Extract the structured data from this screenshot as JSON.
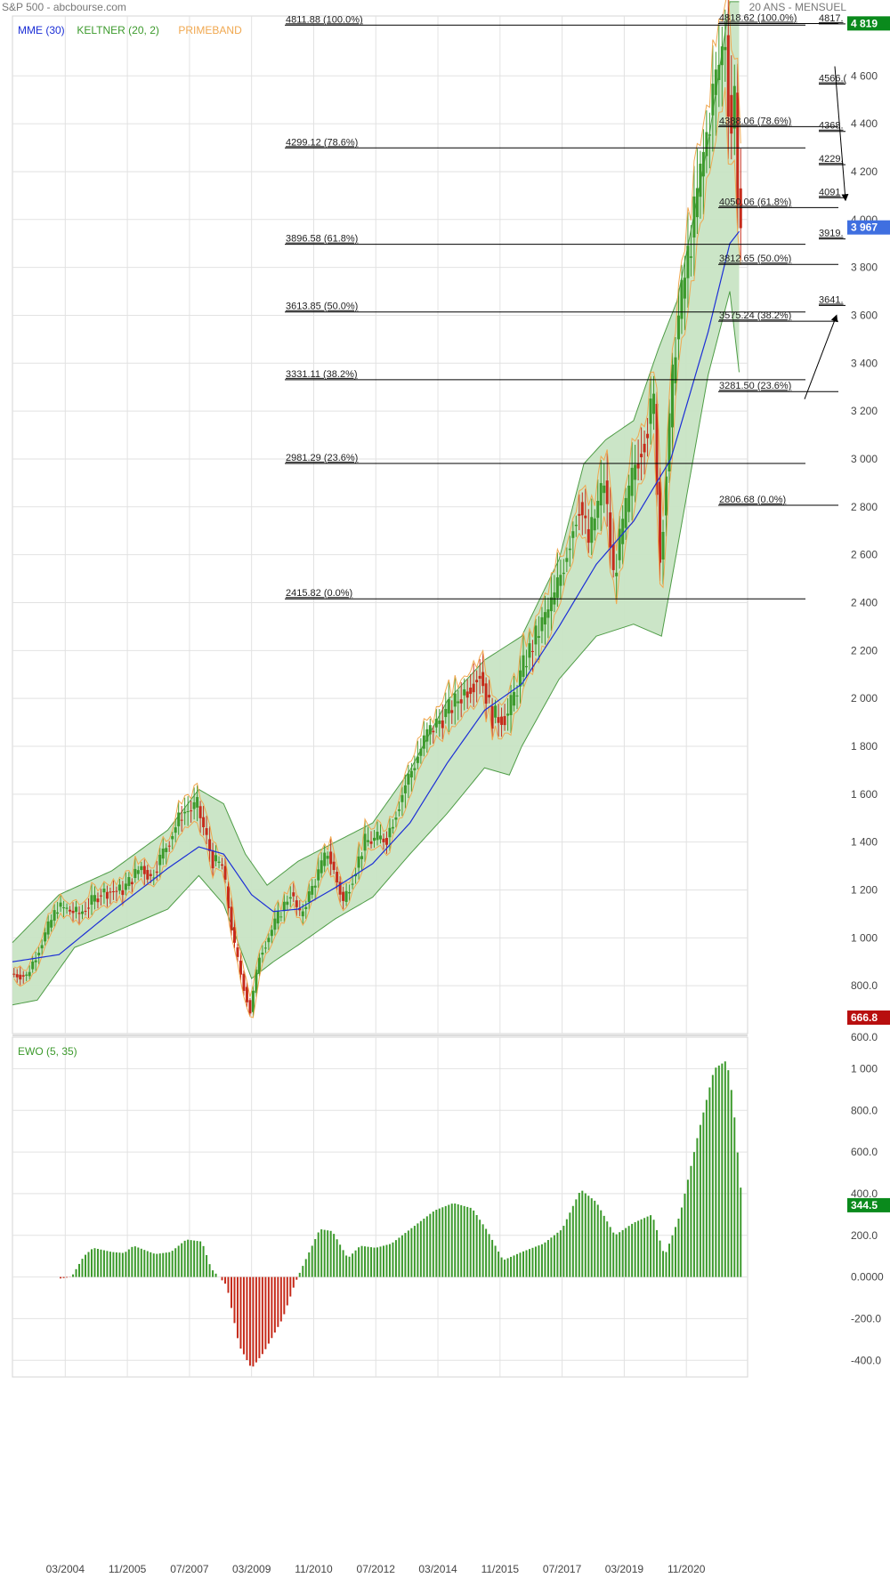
{
  "header": {
    "title": "S&P 500 - abcbourse.com",
    "period": "20 ANS - MENSUEL"
  },
  "colors": {
    "up": "#3c9a2c",
    "down": "#c62b1b",
    "ema": "#1c2fd6",
    "keltner_fill": "#c8e4c4",
    "keltner_line": "#4e9c46",
    "primeband": "#f0a850",
    "fib": "#000000",
    "tag_green": "#0a8a1c",
    "tag_blue": "#3f6fe0",
    "tag_red": "#b80f0f"
  },
  "chart_data": [
    {
      "type": "candlestick",
      "title": "S&P 500",
      "legend": [
        {
          "name": "MME (30)",
          "color": "#1c2fd6"
        },
        {
          "name": "KELTNER (20, 2)",
          "color": "#3c9a2c"
        },
        {
          "name": "PRIMEBAND",
          "color": "#f0a850"
        }
      ],
      "x_tick_labels": [
        "03/2004",
        "11/2005",
        "07/2007",
        "03/2009",
        "11/2010",
        "07/2012",
        "03/2014",
        "11/2015",
        "07/2017",
        "03/2019",
        "11/2020"
      ],
      "y_ticks": [
        800,
        1000,
        1200,
        1400,
        1600,
        1800,
        2000,
        2200,
        2400,
        2600,
        2800,
        3000,
        3200,
        3400,
        3600,
        3800,
        4000,
        4200,
        4400,
        4600
      ],
      "y_tick_labels": [
        "800.0",
        "1 000",
        "1 200",
        "1 400",
        "1 600",
        "1 800",
        "2 000",
        "2 200",
        "2 400",
        "2 600",
        "2 800",
        "3 000",
        "3 200",
        "3 400",
        "3 600",
        "3 800",
        "4 000",
        "4 200",
        "4 400",
        "4 600"
      ],
      "ylim": [
        600,
        4850
      ],
      "bottom_label": "600.0",
      "price_path": [
        [
          "2002-10",
          850
        ],
        [
          "2003-03",
          840
        ],
        [
          "2004-01",
          1130
        ],
        [
          "2004-08",
          1100
        ],
        [
          "2005-03",
          1190
        ],
        [
          "2005-10",
          1200
        ],
        [
          "2006-04",
          1300
        ],
        [
          "2006-07",
          1250
        ],
        [
          "2007-05",
          1520
        ],
        [
          "2007-10",
          1550
        ],
        [
          "2008-03",
          1320
        ],
        [
          "2008-06",
          1300
        ],
        [
          "2008-10",
          960
        ],
        [
          "2009-02",
          740
        ],
        [
          "2009-03",
          690
        ],
        [
          "2009-06",
          930
        ],
        [
          "2010-04",
          1190
        ],
        [
          "2010-07",
          1090
        ],
        [
          "2011-04",
          1360
        ],
        [
          "2011-09",
          1150
        ],
        [
          "2012-04",
          1400
        ],
        [
          "2012-11",
          1420
        ],
        [
          "2013-05",
          1640
        ],
        [
          "2013-12",
          1850
        ],
        [
          "2014-09",
          1980
        ],
        [
          "2015-05",
          2110
        ],
        [
          "2015-09",
          1920
        ],
        [
          "2016-02",
          1930
        ],
        [
          "2016-08",
          2170
        ],
        [
          "2017-05",
          2420
        ],
        [
          "2018-01",
          2820
        ],
        [
          "2018-04",
          2650
        ],
        [
          "2018-09",
          2910
        ],
        [
          "2018-12",
          2510
        ],
        [
          "2019-07",
          2980
        ],
        [
          "2020-01",
          3230
        ],
        [
          "2020-03",
          2580
        ],
        [
          "2020-08",
          3500
        ],
        [
          "2021-04",
          4180
        ],
        [
          "2021-08",
          4520
        ],
        [
          "2021-12",
          4770
        ],
        [
          "2022-01",
          4520
        ],
        [
          "2022-02",
          4380
        ],
        [
          "2022-03",
          4530
        ],
        [
          "2022-04",
          4130
        ],
        [
          "2022-05",
          3970
        ]
      ],
      "ema30_path": [
        [
          "2002-10",
          900
        ],
        [
          "2004-01",
          930
        ],
        [
          "2005-06",
          1110
        ],
        [
          "2006-12",
          1290
        ],
        [
          "2007-10",
          1380
        ],
        [
          "2008-06",
          1350
        ],
        [
          "2009-03",
          1180
        ],
        [
          "2009-10",
          1110
        ],
        [
          "2010-06",
          1120
        ],
        [
          "2011-06",
          1210
        ],
        [
          "2012-06",
          1310
        ],
        [
          "2013-06",
          1480
        ],
        [
          "2014-06",
          1730
        ],
        [
          "2015-06",
          1950
        ],
        [
          "2016-06",
          2060
        ],
        [
          "2017-06",
          2300
        ],
        [
          "2018-06",
          2560
        ],
        [
          "2019-06",
          2740
        ],
        [
          "2020-06",
          3000
        ],
        [
          "2021-06",
          3530
        ],
        [
          "2022-01",
          3900
        ],
        [
          "2022-05",
          3967
        ]
      ],
      "keltner_upper": [
        [
          "2002-10",
          980
        ],
        [
          "2004-01",
          1180
        ],
        [
          "2005-06",
          1280
        ],
        [
          "2006-12",
          1450
        ],
        [
          "2007-10",
          1620
        ],
        [
          "2008-06",
          1560
        ],
        [
          "2009-01",
          1350
        ],
        [
          "2009-08",
          1220
        ],
        [
          "2010-06",
          1320
        ],
        [
          "2011-06",
          1400
        ],
        [
          "2012-06",
          1480
        ],
        [
          "2013-06",
          1700
        ],
        [
          "2014-06",
          1990
        ],
        [
          "2015-06",
          2160
        ],
        [
          "2016-06",
          2260
        ],
        [
          "2017-06",
          2580
        ],
        [
          "2018-02",
          2980
        ],
        [
          "2018-09",
          3080
        ],
        [
          "2019-06",
          3160
        ],
        [
          "2020-02",
          3460
        ],
        [
          "2020-08",
          3660
        ],
        [
          "2021-06",
          4320
        ],
        [
          "2022-01",
          4910
        ]
      ],
      "keltner_lower": [
        [
          "2002-10",
          720
        ],
        [
          "2003-06",
          740
        ],
        [
          "2004-06",
          960
        ],
        [
          "2005-06",
          1020
        ],
        [
          "2006-12",
          1120
        ],
        [
          "2007-10",
          1260
        ],
        [
          "2008-06",
          1140
        ],
        [
          "2009-03",
          830
        ],
        [
          "2009-10",
          900
        ],
        [
          "2010-06",
          970
        ],
        [
          "2011-06",
          1080
        ],
        [
          "2012-06",
          1170
        ],
        [
          "2013-06",
          1350
        ],
        [
          "2014-06",
          1520
        ],
        [
          "2015-06",
          1710
        ],
        [
          "2016-02",
          1680
        ],
        [
          "2016-06",
          1800
        ],
        [
          "2017-06",
          2080
        ],
        [
          "2018-06",
          2260
        ],
        [
          "2019-06",
          2310
        ],
        [
          "2020-03",
          2260
        ],
        [
          "2020-08",
          2620
        ],
        [
          "2021-06",
          3350
        ],
        [
          "2022-01",
          3700
        ],
        [
          "2022-05",
          3250
        ]
      ],
      "fibonacci_long": [
        {
          "label": "4811.88  (100.0%)",
          "value": 4811.88
        },
        {
          "label": "4299.12  (78.6%)",
          "value": 4299.12
        },
        {
          "label": "3896.58  (61.8%)",
          "value": 3896.58
        },
        {
          "label": "3613.85  (50.0%)",
          "value": 3613.85
        },
        {
          "label": "3331.11  (38.2%)",
          "value": 3331.11
        },
        {
          "label": "2981.29  (23.6%)",
          "value": 2981.29
        },
        {
          "label": "2415.82  (0.0%)",
          "value": 2415.82
        }
      ],
      "fibonacci_mid": [
        {
          "label": "4818.62  (100.0%)",
          "value": 4818.62
        },
        {
          "label": "4388.06  (78.6%)",
          "value": 4388.06
        },
        {
          "label": "4050.06  (61.8%)",
          "value": 4050.06
        },
        {
          "label": "3812.65  (50.0%)",
          "value": 3812.65
        },
        {
          "label": "3575.24  (38.2%)",
          "value": 3575.24
        },
        {
          "label": "3281.50  (23.6%)",
          "value": 3281.5
        },
        {
          "label": "2806.68  (0.0%)",
          "value": 2806.68
        }
      ],
      "fibonacci_short": [
        {
          "label": "4817.",
          "value": 4817
        },
        {
          "label": "4566.(",
          "value": 4566
        },
        {
          "label": "4368.",
          "value": 4368
        },
        {
          "label": "4229.",
          "value": 4229
        },
        {
          "label": "4091",
          "value": 4091
        },
        {
          "label": "3919.",
          "value": 3919
        },
        {
          "label": "3641.",
          "value": 3641
        }
      ],
      "price_tags": [
        {
          "label": "4 819",
          "value": 4819,
          "color": "#0a8a1c"
        },
        {
          "label": "3 967",
          "value": 3967,
          "color": "#3f6fe0"
        },
        {
          "label": "666.8",
          "value": 666.8,
          "color": "#b80f0f"
        }
      ],
      "grid": true
    },
    {
      "type": "bar",
      "title": "EWO (5, 35)",
      "y_ticks": [
        -400,
        -200,
        0,
        200,
        400,
        600,
        800,
        1000
      ],
      "y_tick_labels": [
        "-400.0",
        "-200.0",
        "0.0000",
        "200.0",
        "400.0",
        "600.0",
        "800.0",
        "1 000"
      ],
      "ylim": [
        -480,
        1100
      ],
      "current": {
        "label": "344.5",
        "value": 344.5
      },
      "profile": [
        [
          "2004-01",
          -8
        ],
        [
          "2004-05",
          0
        ],
        [
          "2004-09",
          100
        ],
        [
          "2004-12",
          140
        ],
        [
          "2005-06",
          120
        ],
        [
          "2005-10",
          115
        ],
        [
          "2006-01",
          150
        ],
        [
          "2006-08",
          110
        ],
        [
          "2007-01",
          120
        ],
        [
          "2007-06",
          180
        ],
        [
          "2007-11",
          170
        ],
        [
          "2008-02",
          40
        ],
        [
          "2008-07",
          -40
        ],
        [
          "2008-11",
          -330
        ],
        [
          "2009-03",
          -440
        ],
        [
          "2009-07",
          -360
        ],
        [
          "2010-01",
          -200
        ],
        [
          "2010-05",
          -30
        ],
        [
          "2010-08",
          70
        ],
        [
          "2011-01",
          230
        ],
        [
          "2011-05",
          220
        ],
        [
          "2011-10",
          90
        ],
        [
          "2012-02",
          150
        ],
        [
          "2012-07",
          140
        ],
        [
          "2012-12",
          160
        ],
        [
          "2013-07",
          240
        ],
        [
          "2014-02",
          320
        ],
        [
          "2014-08",
          355
        ],
        [
          "2015-02",
          330
        ],
        [
          "2015-07",
          220
        ],
        [
          "2015-12",
          80
        ],
        [
          "2016-06",
          120
        ],
        [
          "2017-01",
          160
        ],
        [
          "2017-07",
          230
        ],
        [
          "2018-01",
          420
        ],
        [
          "2018-06",
          360
        ],
        [
          "2018-12",
          200
        ],
        [
          "2019-06",
          260
        ],
        [
          "2019-12",
          300
        ],
        [
          "2020-04",
          100
        ],
        [
          "2020-09",
          300
        ],
        [
          "2021-03",
          700
        ],
        [
          "2021-08",
          1000
        ],
        [
          "2021-12",
          1040
        ],
        [
          "2022-02",
          850
        ],
        [
          "2022-05",
          345
        ]
      ]
    }
  ]
}
